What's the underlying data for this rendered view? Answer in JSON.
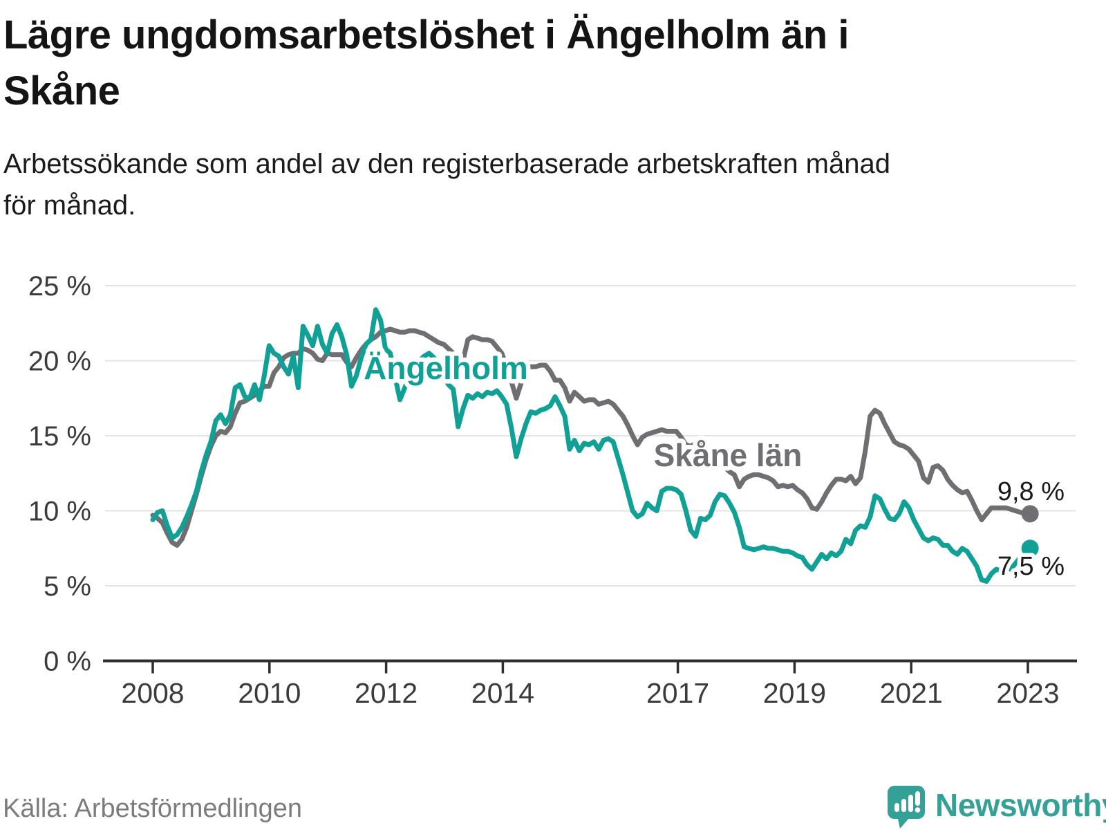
{
  "header": {
    "title_lines": [
      "Lägre ungdomsarbetslöshet i Ängelholm än i",
      "Skåne"
    ],
    "subtitle_lines": [
      "Arbetssökande som andel av den registerbaserade arbetskraften månad",
      "för månad."
    ]
  },
  "chart_data": {
    "type": "line",
    "unit": "%",
    "frequency": "monthly",
    "start": "2008-01",
    "end": "2023-02",
    "grid": true,
    "ylim": [
      0,
      25
    ],
    "yticks": [
      {
        "value": 25,
        "label": "25 %"
      },
      {
        "value": 20,
        "label": "20 %"
      },
      {
        "value": 15,
        "label": "15 %"
      },
      {
        "value": 10,
        "label": "10 %"
      },
      {
        "value": 5,
        "label": "5 %"
      },
      {
        "value": 0,
        "label": "0 %"
      }
    ],
    "xticks": [
      {
        "year": 2008,
        "label": "2008"
      },
      {
        "year": 2010,
        "label": "2010"
      },
      {
        "year": 2012,
        "label": "2012"
      },
      {
        "year": 2014,
        "label": "2014"
      },
      {
        "year": 2017,
        "label": "2017"
      },
      {
        "year": 2019,
        "label": "2019"
      },
      {
        "year": 2021,
        "label": "2021"
      },
      {
        "year": 2023,
        "label": "2023"
      }
    ],
    "series": [
      {
        "name": "Skåne län",
        "color": "#6f6f73",
        "end_value": 9.8,
        "end_label": "9,8 %",
        "values": [
          9.7,
          9.5,
          9.2,
          8.5,
          7.9,
          7.7,
          8.1,
          8.9,
          10.0,
          11.1,
          12.3,
          13.4,
          14.3,
          15.0,
          15.3,
          15.2,
          15.6,
          16.5,
          17.2,
          17.3,
          17.5,
          17.7,
          18.0,
          18.3,
          18.3,
          19.2,
          19.6,
          20.2,
          20.4,
          20.5,
          20.5,
          20.8,
          20.7,
          20.5,
          20.1,
          20.0,
          20.5,
          20.4,
          20.4,
          20.4,
          19.9,
          19.6,
          20.2,
          20.7,
          21.1,
          21.4,
          21.6,
          21.9,
          22.0,
          22.1,
          22.0,
          21.9,
          21.9,
          22.0,
          22.0,
          21.9,
          21.8,
          21.6,
          21.4,
          21.2,
          21.1,
          20.8,
          20.5,
          20.2,
          20.0,
          21.4,
          21.6,
          21.5,
          21.4,
          21.4,
          21.3,
          20.9,
          20.5,
          19.6,
          18.6,
          17.5,
          18.5,
          19.5,
          19.6,
          19.6,
          19.7,
          19.7,
          19.3,
          18.7,
          18.7,
          18.2,
          17.3,
          17.9,
          17.6,
          17.3,
          17.4,
          17.4,
          17.1,
          17.2,
          17.3,
          17.1,
          16.7,
          16.3,
          15.7,
          15.0,
          14.4,
          14.9,
          15.1,
          15.2,
          15.3,
          15.4,
          15.3,
          15.3,
          15.3,
          14.9,
          14.4,
          14.3,
          14.5,
          14.4,
          14.2,
          14.0,
          13.6,
          13.2,
          12.9,
          12.6,
          12.4,
          11.6,
          12.1,
          12.3,
          12.4,
          12.4,
          12.3,
          12.2,
          12.0,
          11.6,
          11.7,
          11.6,
          11.7,
          11.4,
          11.2,
          10.8,
          10.2,
          10.1,
          10.6,
          11.2,
          11.7,
          12.1,
          12.1,
          12.0,
          12.3,
          11.8,
          12.2,
          14.0,
          16.3,
          16.7,
          16.5,
          15.8,
          15.2,
          14.6,
          14.4,
          14.3,
          14.1,
          13.7,
          13.3,
          12.2,
          11.9,
          12.9,
          13.0,
          12.7,
          12.1,
          11.7,
          11.4,
          11.2,
          11.3,
          10.7,
          10.0,
          9.4,
          9.8,
          10.2,
          10.2,
          10.2,
          10.2,
          10.1,
          10.0,
          9.9,
          9.8,
          9.8
        ]
      },
      {
        "name": "Ängelholm",
        "color": "#10a096",
        "end_value": 7.5,
        "end_label": "7,5 %",
        "values": [
          9.4,
          9.9,
          10.0,
          9.0,
          8.2,
          8.4,
          8.9,
          9.6,
          10.4,
          11.3,
          12.6,
          13.7,
          14.6,
          16.0,
          16.4,
          15.8,
          16.4,
          18.2,
          18.4,
          17.6,
          17.5,
          18.4,
          17.4,
          19.0,
          21.0,
          20.5,
          20.3,
          19.6,
          19.1,
          20.3,
          18.2,
          22.3,
          21.7,
          21.0,
          22.3,
          21.1,
          20.5,
          21.8,
          22.4,
          21.6,
          20.4,
          18.3,
          19.0,
          20.2,
          21.1,
          21.4,
          23.4,
          22.7,
          20.8,
          20.5,
          18.9,
          17.4,
          18.2,
          19.0,
          19.6,
          20.0,
          20.3,
          20.5,
          20.2,
          19.8,
          19.0,
          18.4,
          18.1,
          15.6,
          16.8,
          17.7,
          17.5,
          17.8,
          17.6,
          17.9,
          17.8,
          18.0,
          17.6,
          17.1,
          15.5,
          13.6,
          14.8,
          15.8,
          16.6,
          16.5,
          16.7,
          16.8,
          17.0,
          17.6,
          17.0,
          16.3,
          14.1,
          14.7,
          14.0,
          14.5,
          14.4,
          14.6,
          14.1,
          14.7,
          14.8,
          14.6,
          13.5,
          12.4,
          11.2,
          10.0,
          9.6,
          9.8,
          10.5,
          10.2,
          10.0,
          11.3,
          11.5,
          11.5,
          11.4,
          11.1,
          10.0,
          8.7,
          8.3,
          9.5,
          9.4,
          9.7,
          10.6,
          11.1,
          11.0,
          10.5,
          9.9,
          8.9,
          7.6,
          7.5,
          7.4,
          7.5,
          7.6,
          7.5,
          7.5,
          7.4,
          7.3,
          7.3,
          7.2,
          7.0,
          6.9,
          6.4,
          6.1,
          6.6,
          7.1,
          6.8,
          7.2,
          7.0,
          7.3,
          8.1,
          7.8,
          8.7,
          9.0,
          8.9,
          9.6,
          11.0,
          10.8,
          10.1,
          9.5,
          9.4,
          9.8,
          10.6,
          10.2,
          9.4,
          8.8,
          8.2,
          8.0,
          8.2,
          8.1,
          7.7,
          7.7,
          7.3,
          7.1,
          7.5,
          7.3,
          6.8,
          6.3,
          5.4,
          5.3,
          5.8,
          6.1,
          6.0,
          6.3,
          6.1,
          6.5,
          6.9,
          7.1,
          7.5
        ]
      }
    ],
    "colors": {
      "angelholm": "#10a096",
      "skane": "#6f6f73",
      "grid": "#e3e3e3",
      "axis": "#2e2e2e",
      "text": "#141414"
    }
  },
  "footer": {
    "source": "Källa: Arbetsförmedlingen",
    "logo_text": "Newsworthy"
  }
}
